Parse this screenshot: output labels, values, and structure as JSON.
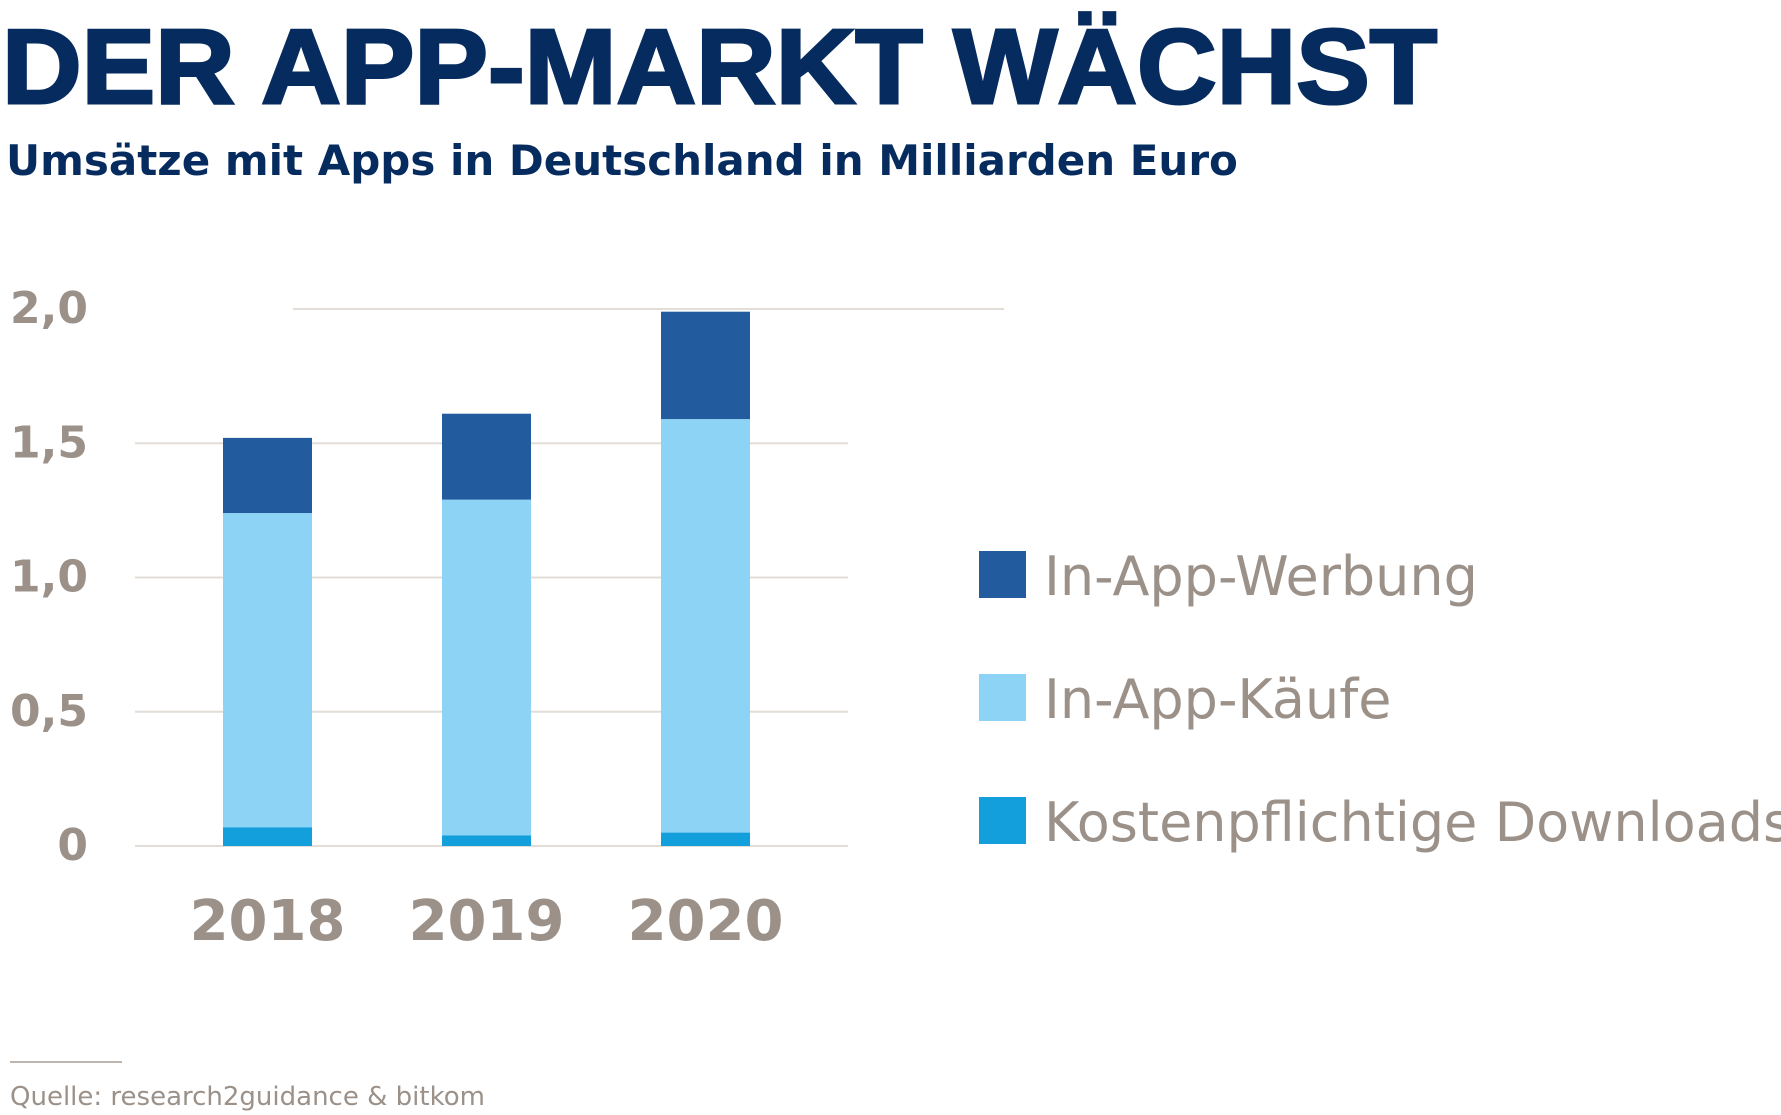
{
  "title": "DER APP-MARKT WÄCHST",
  "subtitle": "Umsätze mit Apps in Deutschland in Milliarden Euro",
  "source": "Quelle: research2guidance & bitkom",
  "chart_data": {
    "type": "bar",
    "stacked": true,
    "title": "DER APP-MARKT WÄCHST",
    "subtitle": "Umsätze mit Apps in Deutschland in Milliarden Euro",
    "xlabel": "",
    "ylabel": "",
    "categories": [
      "2018",
      "2019",
      "2020"
    ],
    "ylim": [
      0,
      2.0
    ],
    "yticks": [
      0,
      0.5,
      1.0,
      1.5,
      2.0
    ],
    "ytick_labels": [
      "0",
      "0,5",
      "1,0",
      "1,5",
      "2,0"
    ],
    "grid": true,
    "legend_position": "right",
    "series": [
      {
        "name": "Kostenpflichtige Downloads",
        "color": "#139fdb",
        "values": [
          0.07,
          0.04,
          0.05
        ]
      },
      {
        "name": "In-App-Käufe",
        "color": "#8dd3f6",
        "values": [
          1.17,
          1.25,
          1.54
        ]
      },
      {
        "name": "In-App-Werbung",
        "color": "#225c9e",
        "values": [
          0.28,
          0.32,
          0.4
        ]
      }
    ],
    "legend_order": [
      "In-App-Werbung",
      "In-App-Käufe",
      "Kostenpflichtige Downloads"
    ]
  }
}
